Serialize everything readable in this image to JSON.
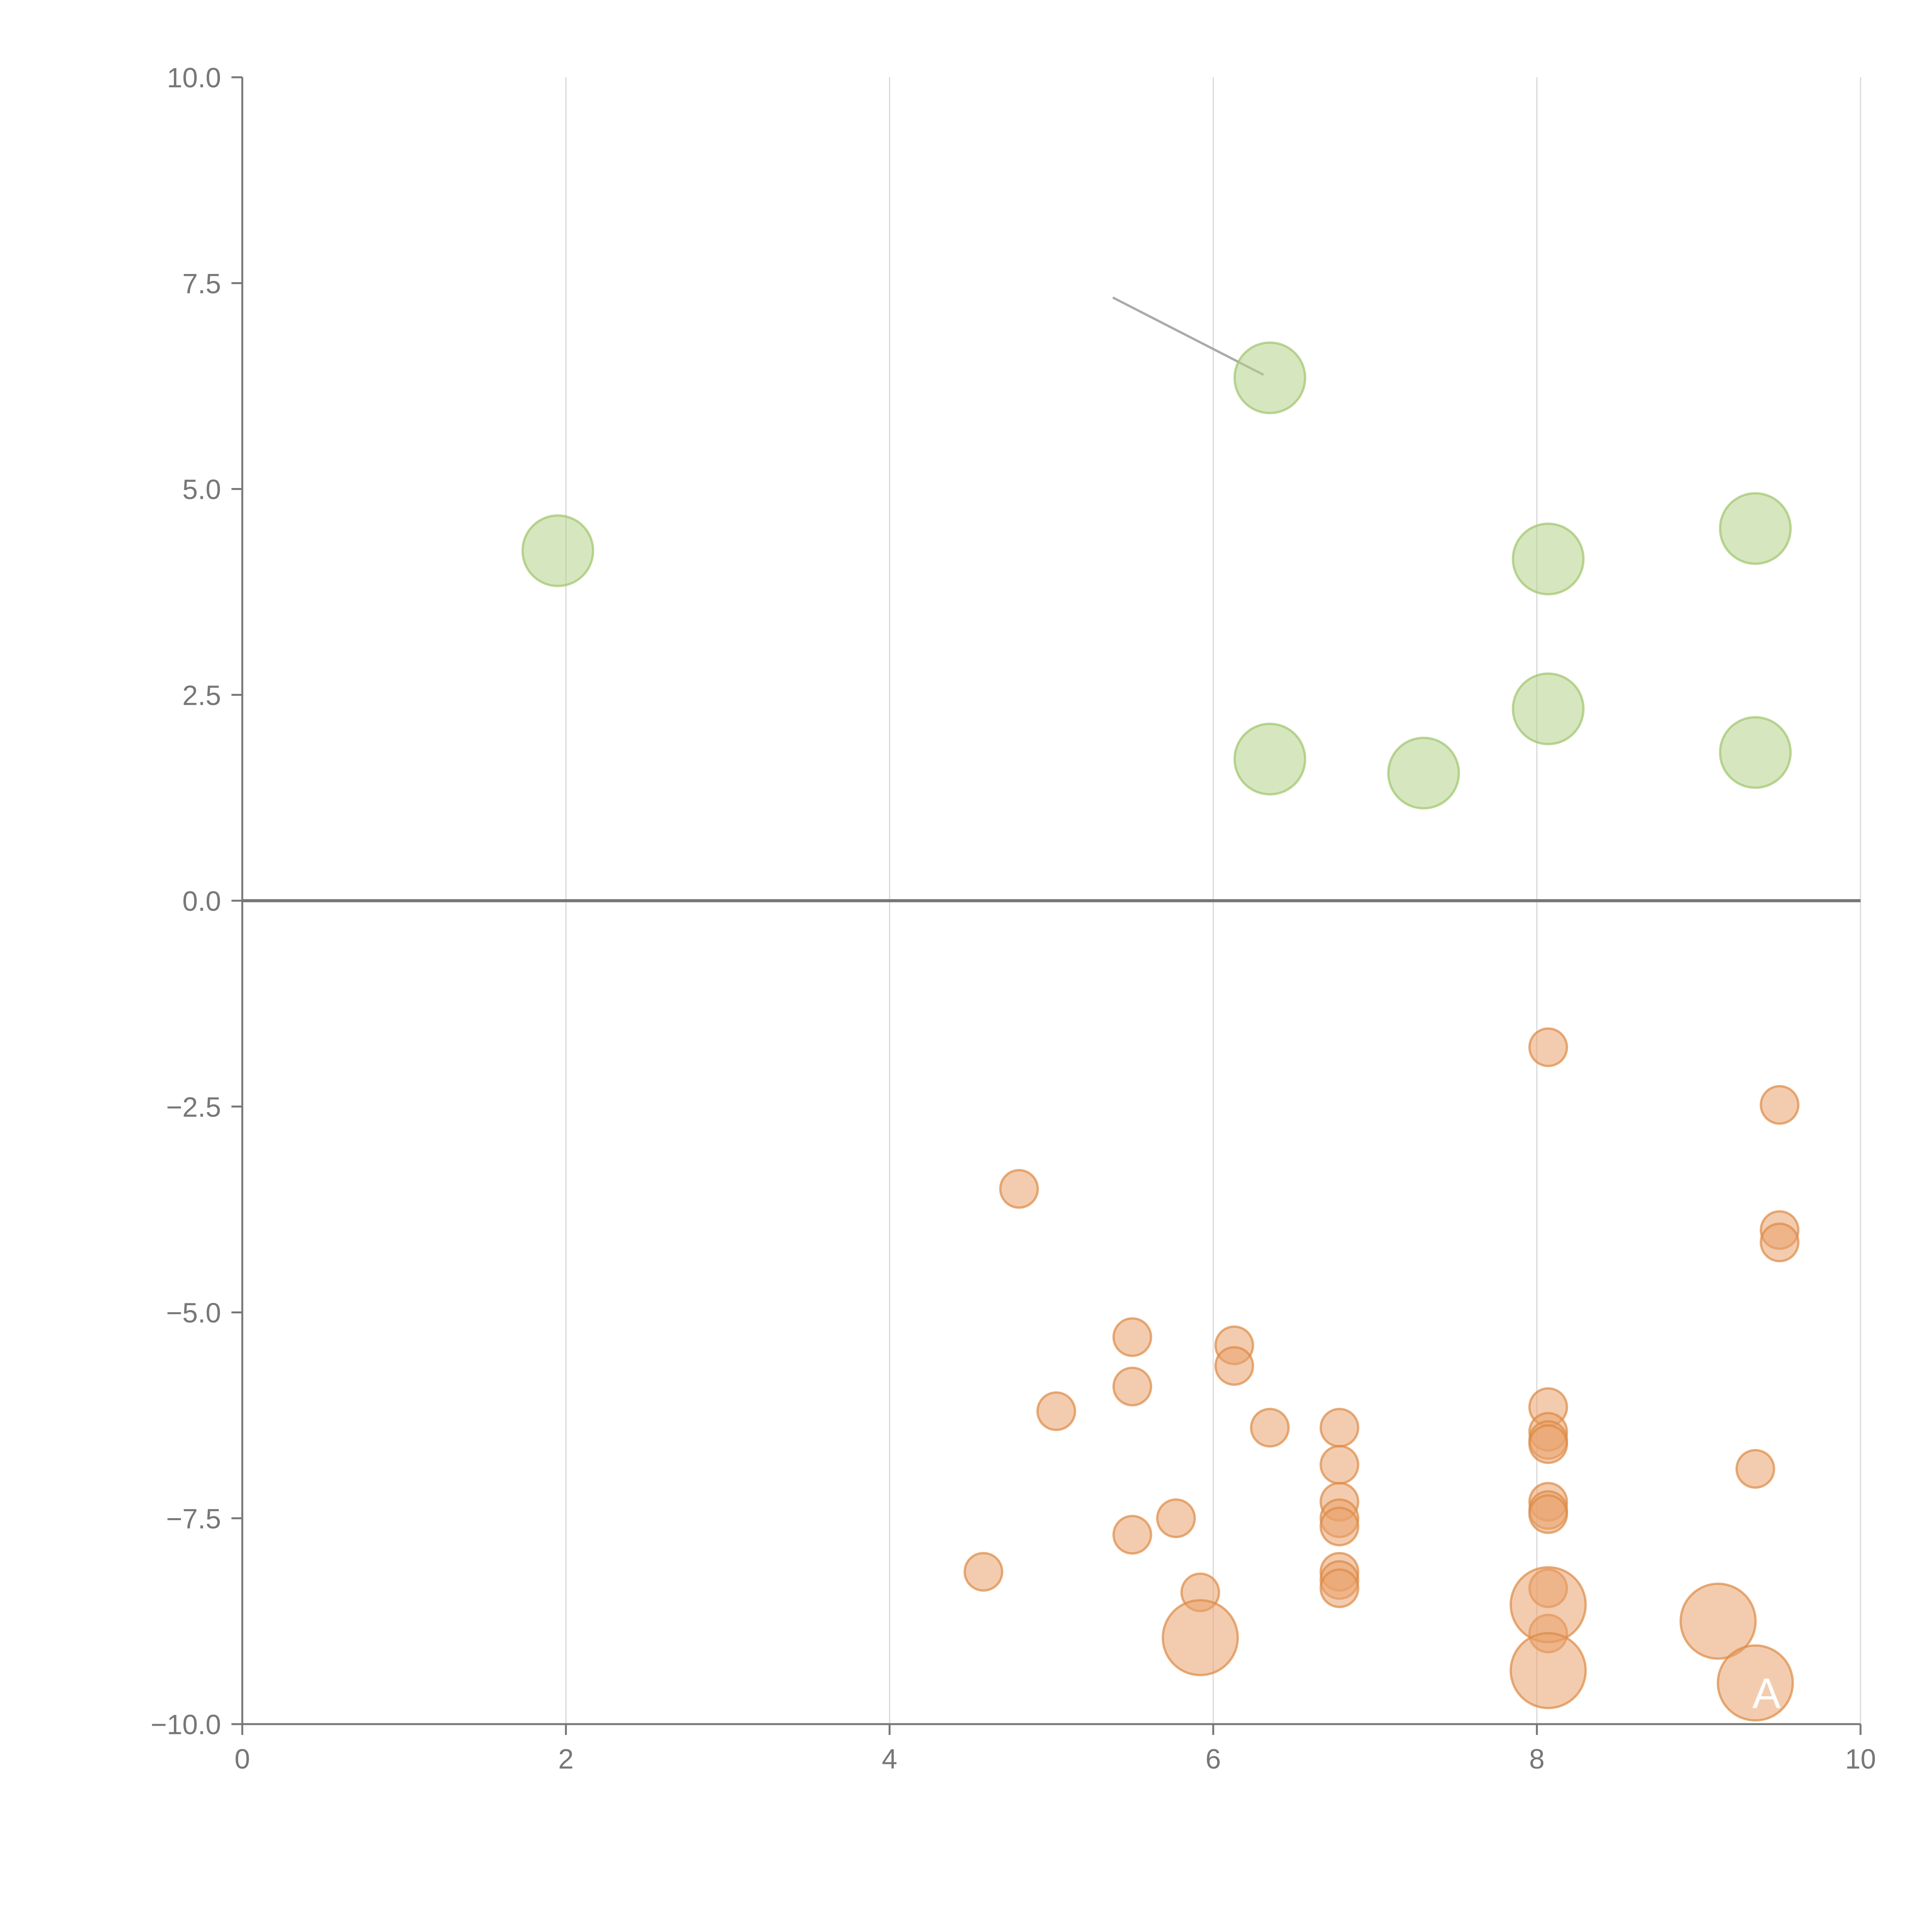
{
  "chart_data": {
    "type": "scatter",
    "title": "",
    "xlabel": "",
    "ylabel": "",
    "xlim": [
      0,
      10
    ],
    "ylim": [
      -10,
      10
    ],
    "x_ticks": [
      0,
      2,
      4,
      6,
      8,
      10
    ],
    "y_ticks": [
      -10,
      -7.5,
      -5,
      -2.5,
      0,
      2.5,
      5,
      7.5,
      10
    ],
    "x_tick_labels": [
      "0",
      "2",
      "4",
      "6",
      "8",
      "10"
    ],
    "y_tick_labels": [
      "−10.0",
      "−7.5",
      "−5.0",
      "−2.5",
      "0.0",
      "2.5",
      "5.0",
      "7.5",
      "10.0"
    ],
    "grid": "vertical",
    "zero_line": true,
    "colors": {
      "positive": "#b5d38a",
      "positive_edge": "#9fc46c",
      "negative": "#e9a36d",
      "negative_edge": "#dd8a45",
      "axis": "#777777",
      "grid": "#d8d8d8",
      "zero_line": "#777777",
      "leader_line": "#aaaaaa"
    },
    "series": [
      {
        "color": "#b5d38a",
        "points": [
          {
            "x": 1.95,
            "y": 4.25,
            "size": 1.6
          },
          {
            "x": 6.35,
            "y": 6.35,
            "size": 1.6
          },
          {
            "x": 8.07,
            "y": 4.15,
            "size": 1.6
          },
          {
            "x": 9.35,
            "y": 4.52,
            "size": 1.6
          },
          {
            "x": 6.35,
            "y": 1.72,
            "size": 1.6
          },
          {
            "x": 7.3,
            "y": 1.55,
            "size": 1.6
          },
          {
            "x": 8.07,
            "y": 2.33,
            "size": 1.6
          },
          {
            "x": 9.35,
            "y": 1.8,
            "size": 1.6
          }
        ]
      },
      {
        "color": "#e9a36d",
        "points": [
          {
            "x": 8.07,
            "y": -1.78,
            "size": 0.85
          },
          {
            "x": 9.5,
            "y": -2.48,
            "size": 0.85
          },
          {
            "x": 4.8,
            "y": -3.5,
            "size": 0.85
          },
          {
            "x": 9.5,
            "y": -4.0,
            "size": 0.85
          },
          {
            "x": 9.5,
            "y": -4.15,
            "size": 0.85
          },
          {
            "x": 5.5,
            "y": -5.3,
            "size": 0.85
          },
          {
            "x": 6.13,
            "y": -5.4,
            "size": 0.85
          },
          {
            "x": 6.13,
            "y": -5.65,
            "size": 0.85
          },
          {
            "x": 5.5,
            "y": -5.9,
            "size": 0.85
          },
          {
            "x": 5.03,
            "y": -6.2,
            "size": 0.85
          },
          {
            "x": 8.07,
            "y": -6.15,
            "size": 0.85
          },
          {
            "x": 8.07,
            "y": -6.45,
            "size": 0.85
          },
          {
            "x": 8.07,
            "y": -6.55,
            "size": 0.85
          },
          {
            "x": 8.07,
            "y": -6.6,
            "size": 0.85
          },
          {
            "x": 6.35,
            "y": -6.4,
            "size": 0.85
          },
          {
            "x": 6.78,
            "y": -6.4,
            "size": 0.85
          },
          {
            "x": 9.35,
            "y": -6.9,
            "size": 0.85
          },
          {
            "x": 6.78,
            "y": -6.85,
            "size": 0.85
          },
          {
            "x": 6.78,
            "y": -7.3,
            "size": 0.85
          },
          {
            "x": 6.78,
            "y": -7.5,
            "size": 0.85
          },
          {
            "x": 6.78,
            "y": -7.6,
            "size": 0.85
          },
          {
            "x": 8.07,
            "y": -7.3,
            "size": 0.85
          },
          {
            "x": 8.07,
            "y": -7.4,
            "size": 0.85
          },
          {
            "x": 8.07,
            "y": -7.45,
            "size": 0.85
          },
          {
            "x": 5.77,
            "y": -7.5,
            "size": 0.85
          },
          {
            "x": 5.5,
            "y": -7.7,
            "size": 0.85
          },
          {
            "x": 4.58,
            "y": -8.15,
            "size": 0.85
          },
          {
            "x": 6.78,
            "y": -8.15,
            "size": 0.85
          },
          {
            "x": 6.78,
            "y": -8.25,
            "size": 0.85
          },
          {
            "x": 6.78,
            "y": -8.35,
            "size": 0.85
          },
          {
            "x": 5.92,
            "y": -8.4,
            "size": 0.85
          },
          {
            "x": 8.07,
            "y": -8.35,
            "size": 0.85
          },
          {
            "x": 8.07,
            "y": -8.9,
            "size": 0.85
          },
          {
            "x": 8.07,
            "y": -8.55,
            "size": 1.7
          },
          {
            "x": 9.12,
            "y": -8.75,
            "size": 1.7
          },
          {
            "x": 5.92,
            "y": -8.95,
            "size": 1.7
          },
          {
            "x": 8.07,
            "y": -9.35,
            "size": 1.7
          },
          {
            "x": 9.35,
            "y": -9.5,
            "size": 1.7
          }
        ]
      }
    ],
    "annotations": [
      {
        "text": "A",
        "x": 9.35,
        "y": -9.5
      }
    ]
  }
}
